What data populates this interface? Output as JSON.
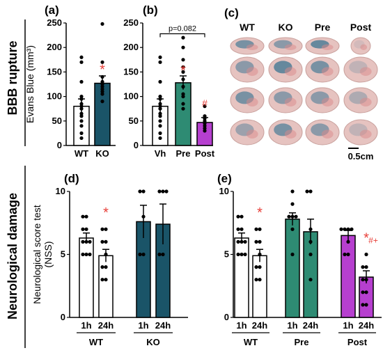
{
  "colors": {
    "wt": "#ffffff",
    "ko": "#1a5468",
    "pre": "#2e8b73",
    "post": "#b63fcf",
    "sig": "#e8403a"
  },
  "sections": {
    "top": "BBB rupture",
    "bottom": "Neurological damage"
  },
  "brain_panel": {
    "label": "(c)",
    "columns": [
      "WT",
      "KO",
      "Pre",
      "Post"
    ],
    "scale_bar": "0.5cm"
  },
  "chart_data": [
    {
      "id": "a",
      "label": "(a)",
      "type": "bar",
      "ylabel": "Evans Blue  (mm³)",
      "ylim": [
        0,
        250
      ],
      "yticks": [
        0,
        50,
        100,
        150,
        200,
        250
      ],
      "categories": [
        "WT",
        "KO"
      ],
      "values": [
        80,
        127
      ],
      "errors": [
        15,
        15
      ],
      "colors": [
        "#ffffff",
        "#1a5468"
      ],
      "points": [
        [
          180,
          170,
          130,
          100,
          95,
          85,
          80,
          75,
          65,
          60,
          50,
          40,
          25,
          15
        ],
        [
          248,
          170,
          140,
          130,
          125,
          120,
          115,
          110,
          105,
          90
        ]
      ],
      "annotations": [
        {
          "text": "*",
          "category": 1,
          "y": 160
        }
      ]
    },
    {
      "id": "b",
      "label": "(b)",
      "type": "bar",
      "ylim": [
        0,
        250
      ],
      "yticks": [
        0,
        50,
        100,
        150,
        200,
        250
      ],
      "categories": [
        "Vh",
        "Pre",
        "Post"
      ],
      "values": [
        80,
        128,
        47
      ],
      "errors": [
        15,
        14,
        10
      ],
      "colors": [
        "#ffffff",
        "#2e8b73",
        "#b63fcf"
      ],
      "points": [
        [
          180,
          170,
          130,
          100,
          95,
          85,
          80,
          75,
          65,
          60,
          50,
          40,
          25,
          15
        ],
        [
          220,
          200,
          175,
          160,
          150,
          135,
          120,
          105,
          100,
          85,
          75
        ],
        [
          80,
          60,
          55,
          50,
          45,
          40,
          35,
          30
        ]
      ],
      "bracket": {
        "text": "p=0.082",
        "from": 0,
        "to": 2,
        "y": 228
      },
      "annotations": [
        {
          "text": "*",
          "category": 1,
          "y": 158
        },
        {
          "text": "#",
          "category": 2,
          "y": 85
        }
      ]
    },
    {
      "id": "d",
      "label": "(d)",
      "type": "bar",
      "ylabel": "Neurological score test (NSS)",
      "ylim": [
        0,
        10
      ],
      "yticks": [
        0,
        5,
        10
      ],
      "groups": [
        "WT",
        "KO"
      ],
      "categories": [
        "1h",
        "24h",
        "1h",
        "24h"
      ],
      "values": [
        6.3,
        4.9,
        7.6,
        7.4
      ],
      "errors": [
        0.4,
        0.5,
        1.3,
        1.6
      ],
      "colors": [
        "#ffffff",
        "#ffffff",
        "#1a5468",
        "#1a5468"
      ],
      "points": [
        [
          8,
          8,
          7,
          7,
          6,
          6,
          6,
          5,
          5,
          5
        ],
        [
          7,
          7,
          6,
          6,
          5,
          4,
          4,
          3,
          3
        ],
        [
          10,
          10,
          8,
          5,
          5
        ],
        [
          10,
          10,
          10,
          5,
          5
        ]
      ],
      "annotations": [
        {
          "text": "*",
          "category": 1,
          "y": 8.5
        }
      ]
    },
    {
      "id": "e",
      "label": "(e)",
      "type": "bar",
      "ylim": [
        0,
        10
      ],
      "yticks": [
        0,
        5,
        10
      ],
      "groups": [
        "WT",
        "Pre",
        "Post"
      ],
      "categories": [
        "1h",
        "24h",
        "1h",
        "24h",
        "1h",
        "24h"
      ],
      "values": [
        6.3,
        4.9,
        7.8,
        6.8,
        6.5,
        3.2
      ],
      "errors": [
        0.4,
        0.5,
        0.5,
        1.0,
        0.4,
        0.5
      ],
      "colors": [
        "#ffffff",
        "#ffffff",
        "#2e8b73",
        "#2e8b73",
        "#b63fcf",
        "#b63fcf"
      ],
      "points": [
        [
          8,
          8,
          7,
          7,
          6,
          6,
          6,
          5,
          5,
          5
        ],
        [
          7,
          7,
          6,
          6,
          5,
          4,
          4,
          3,
          3
        ],
        [
          10,
          9,
          8,
          8,
          8,
          7,
          5
        ],
        [
          10,
          10,
          7,
          6,
          5,
          3
        ],
        [
          7,
          7,
          7,
          7,
          6,
          5,
          5
        ],
        [
          5,
          4,
          4,
          3,
          3,
          2,
          2,
          1,
          1
        ]
      ],
      "annotations": [
        {
          "text": "*",
          "category": 1,
          "y": 8.5
        },
        {
          "text": "*",
          "category": 5,
          "y": 6.5
        },
        {
          "text": "#+",
          "category": 5,
          "y": 6.1
        }
      ]
    }
  ]
}
